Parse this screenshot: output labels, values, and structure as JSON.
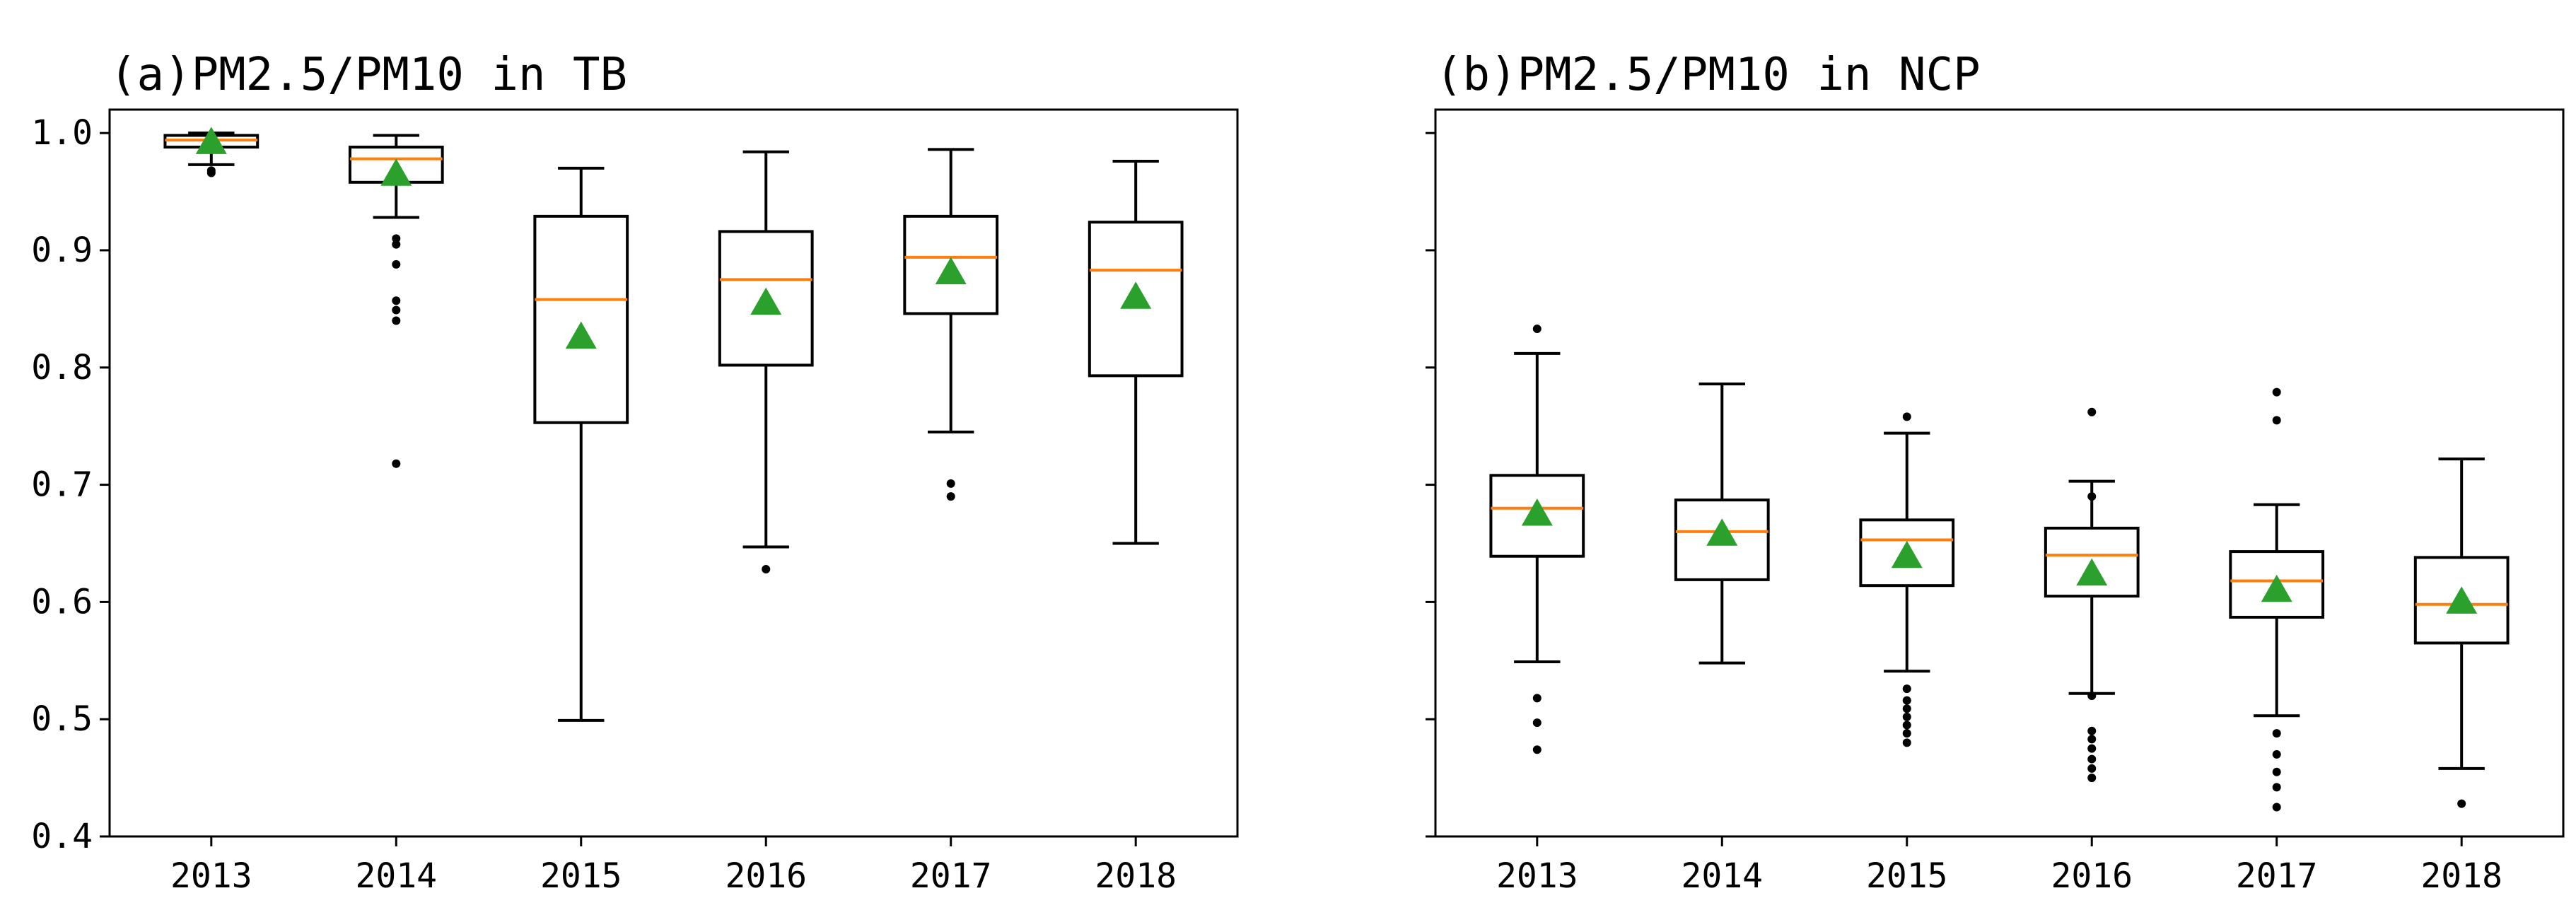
{
  "colors": {
    "box_stroke": "#000000",
    "median": "#ff7f0e",
    "mean_marker": "#2ca02c",
    "outlier": "#000000",
    "background": "#ffffff"
  },
  "chart_data": [
    {
      "type": "box",
      "title": "(a)PM2.5/PM10 in TB",
      "xlabel": "",
      "ylabel": "",
      "ylim": [
        0.4,
        1.02
      ],
      "yticks": [
        0.4,
        0.5,
        0.6,
        0.7,
        0.8,
        0.9,
        1.0
      ],
      "ytick_labels": [
        "0.4",
        "0.5",
        "0.6",
        "0.7",
        "0.8",
        "0.9",
        "1.0"
      ],
      "show_ytick_labels": true,
      "categories": [
        "2013",
        "2014",
        "2015",
        "2016",
        "2017",
        "2018"
      ],
      "boxes": [
        {
          "whisker_low": 0.973,
          "q1": 0.988,
          "median": 0.994,
          "q3": 0.998,
          "whisker_high": 1.0,
          "mean": 0.992,
          "outliers": [
            0.966,
            0.968
          ]
        },
        {
          "whisker_low": 0.928,
          "q1": 0.958,
          "median": 0.978,
          "q3": 0.988,
          "whisker_high": 0.998,
          "mean": 0.965,
          "outliers": [
            0.91,
            0.905,
            0.888,
            0.857,
            0.849,
            0.84,
            0.718
          ]
        },
        {
          "whisker_low": 0.499,
          "q1": 0.753,
          "median": 0.858,
          "q3": 0.929,
          "whisker_high": 0.97,
          "mean": 0.826,
          "outliers": []
        },
        {
          "whisker_low": 0.647,
          "q1": 0.802,
          "median": 0.875,
          "q3": 0.916,
          "whisker_high": 0.984,
          "mean": 0.855,
          "outliers": [
            0.628
          ]
        },
        {
          "whisker_low": 0.745,
          "q1": 0.846,
          "median": 0.894,
          "q3": 0.929,
          "whisker_high": 0.986,
          "mean": 0.881,
          "outliers": [
            0.701,
            0.69
          ]
        },
        {
          "whisker_low": 0.65,
          "q1": 0.793,
          "median": 0.883,
          "q3": 0.924,
          "whisker_high": 0.976,
          "mean": 0.86,
          "outliers": []
        }
      ]
    },
    {
      "type": "box",
      "title": "(b)PM2.5/PM10 in NCP",
      "xlabel": "",
      "ylabel": "",
      "ylim": [
        0.4,
        1.02
      ],
      "yticks": [
        0.4,
        0.5,
        0.6,
        0.7,
        0.8,
        0.9,
        1.0
      ],
      "ytick_labels": [],
      "show_ytick_labels": false,
      "categories": [
        "2013",
        "2014",
        "2015",
        "2016",
        "2017",
        "2018"
      ],
      "boxes": [
        {
          "whisker_low": 0.549,
          "q1": 0.639,
          "median": 0.68,
          "q3": 0.708,
          "whisker_high": 0.812,
          "mean": 0.675,
          "outliers": [
            0.833,
            0.518,
            0.497,
            0.474
          ]
        },
        {
          "whisker_low": 0.548,
          "q1": 0.619,
          "median": 0.66,
          "q3": 0.687,
          "whisker_high": 0.786,
          "mean": 0.658,
          "outliers": []
        },
        {
          "whisker_low": 0.541,
          "q1": 0.614,
          "median": 0.653,
          "q3": 0.67,
          "whisker_high": 0.744,
          "mean": 0.639,
          "outliers": [
            0.758,
            0.526,
            0.516,
            0.509,
            0.502,
            0.495,
            0.488,
            0.48
          ]
        },
        {
          "whisker_low": 0.522,
          "q1": 0.605,
          "median": 0.64,
          "q3": 0.663,
          "whisker_high": 0.703,
          "mean": 0.624,
          "outliers": [
            0.762,
            0.69,
            0.52,
            0.49,
            0.483,
            0.475,
            0.466,
            0.458,
            0.45
          ]
        },
        {
          "whisker_low": 0.503,
          "q1": 0.587,
          "median": 0.618,
          "q3": 0.643,
          "whisker_high": 0.683,
          "mean": 0.61,
          "outliers": [
            0.779,
            0.755,
            0.488,
            0.47,
            0.455,
            0.442,
            0.425
          ]
        },
        {
          "whisker_low": 0.458,
          "q1": 0.565,
          "median": 0.598,
          "q3": 0.638,
          "whisker_high": 0.722,
          "mean": 0.6,
          "outliers": [
            0.428
          ]
        }
      ]
    }
  ]
}
